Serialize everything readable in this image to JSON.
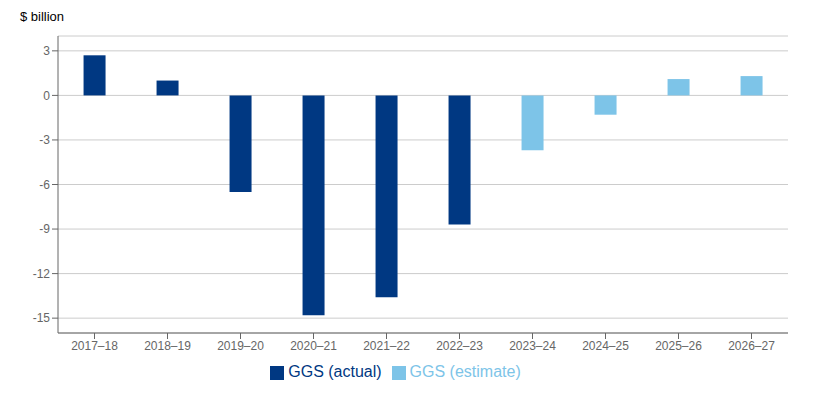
{
  "chart_data": {
    "type": "bar",
    "ylabel": "$ billion",
    "categories": [
      "2017–18",
      "2018–19",
      "2019–20",
      "2020–21",
      "2021–22",
      "2022–23",
      "2023–24",
      "2024–25",
      "2025–26",
      "2026–27"
    ],
    "series": [
      {
        "name": "GGS (actual)",
        "color": "#003882",
        "values": [
          2.7,
          1.0,
          -6.5,
          -14.8,
          -13.6,
          -8.7,
          null,
          null,
          null,
          null
        ]
      },
      {
        "name": "GGS (estimate)",
        "color": "#7DC4E8",
        "values": [
          null,
          null,
          null,
          null,
          null,
          null,
          -3.7,
          -1.3,
          1.1,
          1.3
        ]
      }
    ],
    "ylim": [
      -16,
      4
    ],
    "yticks": [
      -15,
      -12,
      -9,
      -6,
      -3,
      0,
      3
    ],
    "grid": true,
    "legend": "bottom"
  }
}
